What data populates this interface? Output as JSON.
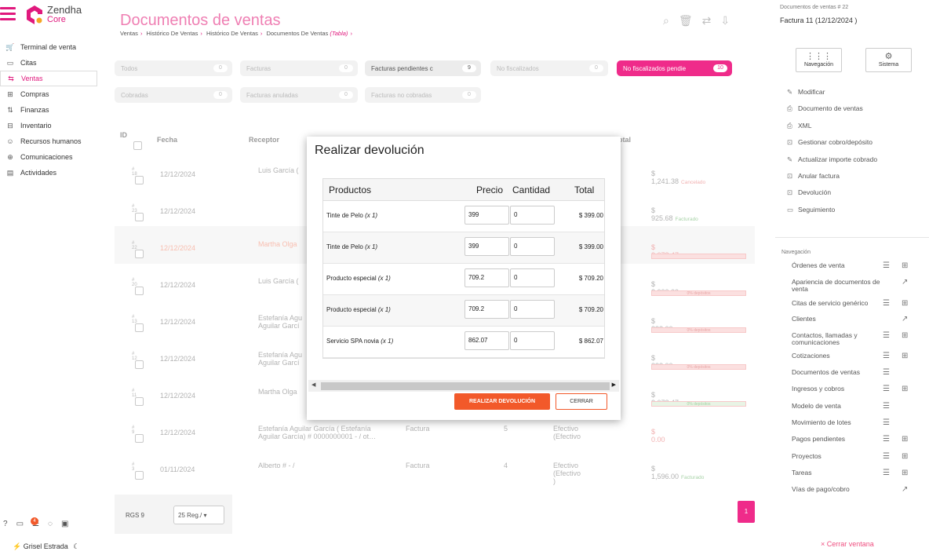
{
  "app": {
    "name": "Zendha",
    "sub": "Core"
  },
  "sidebar": {
    "items": [
      {
        "label": "Terminal de venta",
        "icon": "cart-icon",
        "glyph": "🛒"
      },
      {
        "label": "Citas",
        "icon": "calendar-icon",
        "glyph": "▭"
      },
      {
        "label": "Ventas",
        "icon": "sales-icon",
        "glyph": "⇆"
      },
      {
        "label": "Compras",
        "icon": "bag-icon",
        "glyph": "⊞"
      },
      {
        "label": "Finanzas",
        "icon": "finance-icon",
        "glyph": "⇅"
      },
      {
        "label": "Inventario",
        "icon": "inventory-icon",
        "glyph": "⊟"
      },
      {
        "label": "Recursos humanos",
        "icon": "people-icon",
        "glyph": "☺"
      },
      {
        "label": "Comunicaciones",
        "icon": "globe-icon",
        "glyph": "⊕"
      },
      {
        "label": "Actividades",
        "icon": "activities-icon",
        "glyph": "▤"
      }
    ],
    "notif_count": "4",
    "user": "Grisel Estrada"
  },
  "header": {
    "title": "Documentos de ventas",
    "crumbs": [
      "Ventas",
      "Histórico De Ventas",
      "Histórico De Ventas",
      "Documentos De Ventas"
    ],
    "crumb_tag": "(Tabla)"
  },
  "filters": [
    {
      "label": "Todos",
      "count": "0"
    },
    {
      "label": "Facturas",
      "count": "0"
    },
    {
      "label": "Facturas pendientes c",
      "count": "9"
    },
    {
      "label": "No fiscalizados",
      "count": "0"
    },
    {
      "label": "No fiscalizados pendie",
      "count": "10"
    },
    {
      "label": "Cobradas",
      "count": "0"
    },
    {
      "label": "Facturas anuladas",
      "count": "0"
    },
    {
      "label": "Facturas no cobradas",
      "count": "0"
    }
  ],
  "table": {
    "headers": {
      "id": "ID",
      "fecha": "Fecha",
      "receptor": "Receptor",
      "total": "otal"
    },
    "rows": [
      {
        "id": "# 18",
        "fecha": "12/12/2024",
        "receptor": "Luis García (",
        "tipo": "",
        "num": "",
        "pago": ")",
        "total": "$ 1,241.38",
        "status": "Cancelado",
        "bar": ""
      },
      {
        "id": "# 23",
        "fecha": "12/12/2024",
        "receptor": "",
        "tipo": "",
        "num": "",
        "pago": ")",
        "total": "$ 925.68",
        "status": "Facturado",
        "bar": ""
      },
      {
        "id": "# 22",
        "fecha": "12/12/2024",
        "receptor": "Martha Olga",
        "tipo": "",
        "num": "",
        "pago": ")",
        "total": "$ 3,078.47",
        "status": "Facturado",
        "bar": ""
      },
      {
        "id": "# 20",
        "fecha": "12/12/2024",
        "receptor": "Luis García (",
        "tipo": "",
        "num": "",
        "pago": ")",
        "total": "$ 3,000.00",
        "status": "Facturado",
        "bar": "0% depósitos"
      },
      {
        "id": "# 13",
        "fecha": "12/12/2024",
        "receptor": "Estefanía Agu\nAguilar Garcí",
        "tipo": "",
        "num": "",
        "pago": ")",
        "total": "$ 838.00",
        "status": "Facturado",
        "bar": "0% depósitos"
      },
      {
        "id": "# 12",
        "fecha": "12/12/2024",
        "receptor": "Estefanía Agu\nAguilar Garcí",
        "tipo": "",
        "num": "",
        "pago": ")",
        "total": "$ 838.00",
        "status": "Facturado",
        "bar": "0% depósitos"
      },
      {
        "id": "# 11",
        "fecha": "12/12/2024",
        "receptor": "Martha Olga",
        "tipo": "",
        "num": "",
        "pago": ")",
        "total": "$ 3,078.47",
        "status": "Facturado",
        "bar": "0% depósitos"
      },
      {
        "id": "# 9",
        "fecha": "12/12/2024",
        "receptor": "Estefanía Aguilar García ( Estefanía\nAguilar García) # 0000000001 - / ot…",
        "tipo": "Factura",
        "num": "5",
        "pago": "Efectivo (Efectivo",
        "total": "$ 0.00",
        "status": "",
        "bar": ""
      },
      {
        "id": "# 3",
        "fecha": "01/11/2024",
        "receptor": "Alberto # - /",
        "tipo": "Factura",
        "num": "4",
        "pago": "Efectivo (Efectivo )",
        "total": "$ 1,596.00",
        "status": "Facturado",
        "bar": ""
      }
    ]
  },
  "pagination": {
    "rgs": "RGS 9",
    "per_page": "25 Reg./",
    "page": "1"
  },
  "modal": {
    "title": "Realizar devolución",
    "headers": {
      "productos": "Productos",
      "precio": "Precio",
      "cantidad": "Cantidad",
      "total": "Total"
    },
    "rows": [
      {
        "producto": "Tinte de Pelo",
        "qty_tag": "(x 1)",
        "precio": "399",
        "cantidad": "0",
        "total": "$ 399.00"
      },
      {
        "producto": "Tinte de Pelo",
        "qty_tag": "(x 1)",
        "precio": "399",
        "cantidad": "0",
        "total": "$ 399.00"
      },
      {
        "producto": "Producto especial",
        "qty_tag": "(x 1)",
        "precio": "709.2",
        "cantidad": "0",
        "total": "$ 709.20"
      },
      {
        "producto": "Producto especial",
        "qty_tag": "(x 1)",
        "precio": "709.2",
        "cantidad": "0",
        "total": "$ 709.20"
      },
      {
        "producto": "Servicio SPA novia",
        "qty_tag": "(x 1)",
        "precio": "862.07",
        "cantidad": "0",
        "total": "$ 862.07"
      }
    ],
    "submit": "REALIZAR DEVOLUCIÓN",
    "close": "CERRAR"
  },
  "right_panel": {
    "doc_label": "Documentos de ventas # 22",
    "doc_title": "Factura 11 (12/12/2024 )",
    "buttons": [
      {
        "label": "Navegación"
      },
      {
        "label": "Sistema"
      }
    ],
    "actions": [
      "Modificar",
      "Documento de ventas",
      "XML",
      "Gestionar cobro/depósito",
      "Actualizar importe cobrado",
      "Anular factura",
      "Devolución",
      "Seguimiento"
    ],
    "nav_title": "Navegación",
    "nav_links": [
      "Órdenes de venta",
      "Apariencia de documentos de venta",
      "Citas de servicio genérico",
      "Clientes",
      "Contactos, llamadas y comunicaciones",
      "Cotizaciones",
      "Documentos de ventas",
      "Ingresos y cobros",
      "Modelo de venta",
      "Movimiento de lotes",
      "Pagos pendientes",
      "Proyectos",
      "Tareas",
      "Vías de pago/cobro"
    ],
    "close": "Cerrar ventana"
  },
  "colors": {
    "accent": "#e0197d",
    "orange": "#f2592a"
  }
}
